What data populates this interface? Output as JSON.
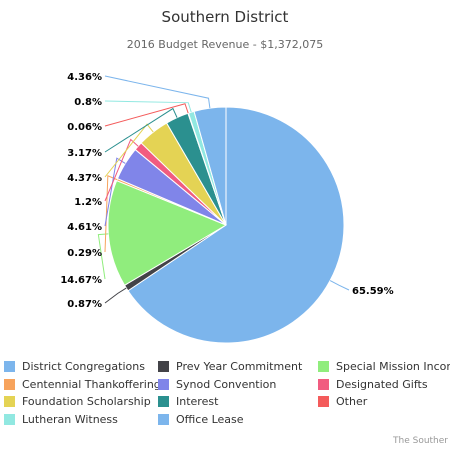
{
  "chart_data": {
    "type": "pie",
    "title": "Southern District",
    "subtitle": "2016 Budget Revenue - $1,372,075",
    "slices": [
      {
        "name": "District Congregations",
        "value": 65.59,
        "label": "65.59%",
        "color": "#7cb5ec"
      },
      {
        "name": "Prev Year Commitment",
        "value": 0.87,
        "label": "0.87%",
        "color": "#434348"
      },
      {
        "name": "Special Mission Income",
        "value": 14.67,
        "label": "14.67%",
        "color": "#90ed7d"
      },
      {
        "name": "Centennial Thankoffering",
        "value": 0.29,
        "label": "0.29%",
        "color": "#f7a35c"
      },
      {
        "name": "Synod Convention",
        "value": 4.61,
        "label": "4.61%",
        "color": "#8085e9"
      },
      {
        "name": "Designated Gifts",
        "value": 1.2,
        "label": "1.2%",
        "color": "#f15c80"
      },
      {
        "name": "Foundation Scholarship",
        "value": 4.37,
        "label": "4.37%",
        "color": "#e4d354"
      },
      {
        "name": "Interest",
        "value": 3.17,
        "label": "3.17%",
        "color": "#2b908f"
      },
      {
        "name": "Other",
        "value": 0.06,
        "label": "0.06%",
        "color": "#f45b5b"
      },
      {
        "name": "Lutheran Witness",
        "value": 0.8,
        "label": "0.8%",
        "color": "#91e8e1"
      },
      {
        "name": "Office Lease",
        "value": 4.36,
        "label": "4.36%",
        "color": "#7cb5ec"
      }
    ],
    "legend_position": "bottom"
  },
  "credit": "The Souther"
}
